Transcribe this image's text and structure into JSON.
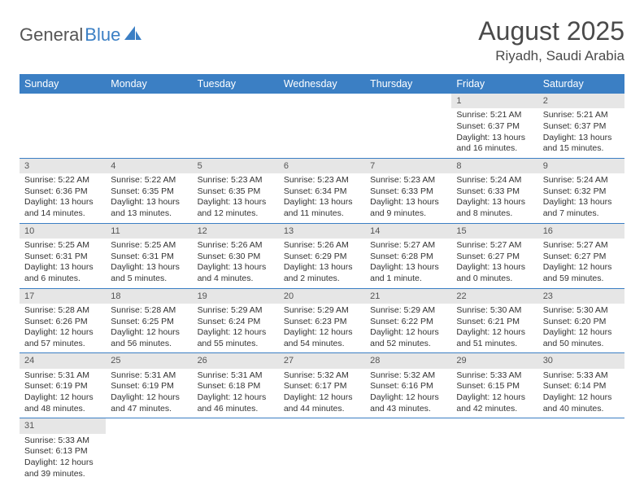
{
  "logo": {
    "text1": "General",
    "text2": "Blue"
  },
  "title": "August 2025",
  "location": "Riyadh, Saudi Arabia",
  "colors": {
    "header_bg": "#3b7fc4",
    "header_fg": "#ffffff",
    "daynum_bg": "#e6e6e6",
    "row_divider": "#3b7fc4",
    "background": "#ffffff"
  },
  "typography": {
    "title_fontsize": 32,
    "location_fontsize": 17,
    "header_fontsize": 12.5,
    "cell_fontsize": 10.5
  },
  "day_headers": [
    "Sunday",
    "Monday",
    "Tuesday",
    "Wednesday",
    "Thursday",
    "Friday",
    "Saturday"
  ],
  "weeks": [
    [
      null,
      null,
      null,
      null,
      null,
      {
        "n": "1",
        "sunrise": "5:21 AM",
        "sunset": "6:37 PM",
        "daylight": "13 hours and 16 minutes."
      },
      {
        "n": "2",
        "sunrise": "5:21 AM",
        "sunset": "6:37 PM",
        "daylight": "13 hours and 15 minutes."
      }
    ],
    [
      {
        "n": "3",
        "sunrise": "5:22 AM",
        "sunset": "6:36 PM",
        "daylight": "13 hours and 14 minutes."
      },
      {
        "n": "4",
        "sunrise": "5:22 AM",
        "sunset": "6:35 PM",
        "daylight": "13 hours and 13 minutes."
      },
      {
        "n": "5",
        "sunrise": "5:23 AM",
        "sunset": "6:35 PM",
        "daylight": "13 hours and 12 minutes."
      },
      {
        "n": "6",
        "sunrise": "5:23 AM",
        "sunset": "6:34 PM",
        "daylight": "13 hours and 11 minutes."
      },
      {
        "n": "7",
        "sunrise": "5:23 AM",
        "sunset": "6:33 PM",
        "daylight": "13 hours and 9 minutes."
      },
      {
        "n": "8",
        "sunrise": "5:24 AM",
        "sunset": "6:33 PM",
        "daylight": "13 hours and 8 minutes."
      },
      {
        "n": "9",
        "sunrise": "5:24 AM",
        "sunset": "6:32 PM",
        "daylight": "13 hours and 7 minutes."
      }
    ],
    [
      {
        "n": "10",
        "sunrise": "5:25 AM",
        "sunset": "6:31 PM",
        "daylight": "13 hours and 6 minutes."
      },
      {
        "n": "11",
        "sunrise": "5:25 AM",
        "sunset": "6:31 PM",
        "daylight": "13 hours and 5 minutes."
      },
      {
        "n": "12",
        "sunrise": "5:26 AM",
        "sunset": "6:30 PM",
        "daylight": "13 hours and 4 minutes."
      },
      {
        "n": "13",
        "sunrise": "5:26 AM",
        "sunset": "6:29 PM",
        "daylight": "13 hours and 2 minutes."
      },
      {
        "n": "14",
        "sunrise": "5:27 AM",
        "sunset": "6:28 PM",
        "daylight": "13 hours and 1 minute."
      },
      {
        "n": "15",
        "sunrise": "5:27 AM",
        "sunset": "6:27 PM",
        "daylight": "13 hours and 0 minutes."
      },
      {
        "n": "16",
        "sunrise": "5:27 AM",
        "sunset": "6:27 PM",
        "daylight": "12 hours and 59 minutes."
      }
    ],
    [
      {
        "n": "17",
        "sunrise": "5:28 AM",
        "sunset": "6:26 PM",
        "daylight": "12 hours and 57 minutes."
      },
      {
        "n": "18",
        "sunrise": "5:28 AM",
        "sunset": "6:25 PM",
        "daylight": "12 hours and 56 minutes."
      },
      {
        "n": "19",
        "sunrise": "5:29 AM",
        "sunset": "6:24 PM",
        "daylight": "12 hours and 55 minutes."
      },
      {
        "n": "20",
        "sunrise": "5:29 AM",
        "sunset": "6:23 PM",
        "daylight": "12 hours and 54 minutes."
      },
      {
        "n": "21",
        "sunrise": "5:29 AM",
        "sunset": "6:22 PM",
        "daylight": "12 hours and 52 minutes."
      },
      {
        "n": "22",
        "sunrise": "5:30 AM",
        "sunset": "6:21 PM",
        "daylight": "12 hours and 51 minutes."
      },
      {
        "n": "23",
        "sunrise": "5:30 AM",
        "sunset": "6:20 PM",
        "daylight": "12 hours and 50 minutes."
      }
    ],
    [
      {
        "n": "24",
        "sunrise": "5:31 AM",
        "sunset": "6:19 PM",
        "daylight": "12 hours and 48 minutes."
      },
      {
        "n": "25",
        "sunrise": "5:31 AM",
        "sunset": "6:19 PM",
        "daylight": "12 hours and 47 minutes."
      },
      {
        "n": "26",
        "sunrise": "5:31 AM",
        "sunset": "6:18 PM",
        "daylight": "12 hours and 46 minutes."
      },
      {
        "n": "27",
        "sunrise": "5:32 AM",
        "sunset": "6:17 PM",
        "daylight": "12 hours and 44 minutes."
      },
      {
        "n": "28",
        "sunrise": "5:32 AM",
        "sunset": "6:16 PM",
        "daylight": "12 hours and 43 minutes."
      },
      {
        "n": "29",
        "sunrise": "5:33 AM",
        "sunset": "6:15 PM",
        "daylight": "12 hours and 42 minutes."
      },
      {
        "n": "30",
        "sunrise": "5:33 AM",
        "sunset": "6:14 PM",
        "daylight": "12 hours and 40 minutes."
      }
    ],
    [
      {
        "n": "31",
        "sunrise": "5:33 AM",
        "sunset": "6:13 PM",
        "daylight": "12 hours and 39 minutes."
      },
      null,
      null,
      null,
      null,
      null,
      null
    ]
  ],
  "labels": {
    "sunrise_prefix": "Sunrise: ",
    "sunset_prefix": "Sunset: ",
    "daylight_prefix": "Daylight: "
  }
}
